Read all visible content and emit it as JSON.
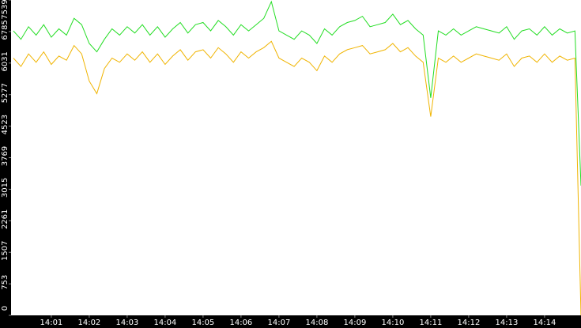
{
  "chart_data": {
    "type": "line",
    "x": [
      0,
      0.2,
      0.4,
      0.6,
      0.8,
      1,
      1.2,
      1.4,
      1.6,
      1.8,
      2,
      2.2,
      2.4,
      2.6,
      2.8,
      3,
      3.2,
      3.4,
      3.6,
      3.8,
      4,
      4.2,
      4.4,
      4.6,
      4.8,
      5,
      5.2,
      5.4,
      5.6,
      5.8,
      6,
      6.2,
      6.4,
      6.6,
      6.8,
      7,
      7.2,
      7.4,
      7.6,
      7.8,
      8,
      8.2,
      8.4,
      8.6,
      8.8,
      9,
      9.2,
      9.4,
      9.6,
      9.8,
      10,
      10.2,
      10.4,
      10.6,
      10.8,
      11,
      11.2,
      11.4,
      11.6,
      11.8,
      12,
      12.2,
      12.4,
      12.6,
      12.8,
      13,
      13.2,
      13.4,
      13.6,
      13.8,
      14,
      14.2,
      14.4,
      14.6,
      14.8,
      14.96
    ],
    "series": [
      {
        "color": "#22dd22",
        "values": [
          6800,
          6600,
          6900,
          6700,
          6950,
          6650,
          6850,
          6700,
          7100,
          6950,
          6500,
          6300,
          6600,
          6850,
          6700,
          6900,
          6750,
          6950,
          6700,
          6900,
          6650,
          6850,
          7000,
          6750,
          6950,
          7000,
          6800,
          7050,
          6900,
          6700,
          6950,
          6800,
          6950,
          7100,
          7500,
          6800,
          6700,
          6600,
          6800,
          6700,
          6500,
          6850,
          6700,
          6900,
          7000,
          7050,
          7150,
          6900,
          6950,
          7000,
          7200,
          6950,
          7050,
          6850,
          6700,
          5200,
          6800,
          6700,
          6850,
          6700,
          6800,
          6900,
          6850,
          6800,
          6750,
          6900,
          6600,
          6800,
          6850,
          6700,
          6900,
          6700,
          6850,
          6750,
          6800,
          3100
        ]
      },
      {
        "color": "#f0b400",
        "values": [
          6150,
          5950,
          6250,
          6050,
          6300,
          6000,
          6200,
          6100,
          6450,
          6250,
          5600,
          5300,
          5900,
          6150,
          6050,
          6250,
          6100,
          6300,
          6050,
          6250,
          6000,
          6200,
          6350,
          6100,
          6300,
          6350,
          6150,
          6400,
          6250,
          6050,
          6300,
          6150,
          6300,
          6400,
          6550,
          6150,
          6050,
          5950,
          6150,
          6050,
          5850,
          6200,
          6050,
          6250,
          6350,
          6400,
          6450,
          6250,
          6300,
          6350,
          6500,
          6300,
          6400,
          6200,
          6050,
          4750,
          6150,
          6050,
          6200,
          6050,
          6150,
          6250,
          6200,
          6150,
          6100,
          6250,
          5950,
          6150,
          6200,
          6050,
          6250,
          6050,
          6200,
          6100,
          6150,
          0
        ]
      }
    ],
    "xlim": [
      -0.06,
      14.96
    ],
    "xticks": [
      {
        "value": 1,
        "label": "14:01"
      },
      {
        "value": 2,
        "label": "14:02"
      },
      {
        "value": 3,
        "label": "14:03"
      },
      {
        "value": 4,
        "label": "14:04"
      },
      {
        "value": 5,
        "label": "14:05"
      },
      {
        "value": 6,
        "label": "14:06"
      },
      {
        "value": 7,
        "label": "14:07"
      },
      {
        "value": 8,
        "label": "14:08"
      },
      {
        "value": 9,
        "label": "14:09"
      },
      {
        "value": 10,
        "label": "14:10"
      },
      {
        "value": 11,
        "label": "14:11"
      },
      {
        "value": 12,
        "label": "14:12"
      },
      {
        "value": 13,
        "label": "14:13"
      },
      {
        "value": 14,
        "label": "14:14"
      }
    ],
    "ylim": [
      0,
      7539
    ],
    "yticks": [
      0,
      753,
      1507,
      2261,
      3015,
      3769,
      4523,
      5277,
      6031,
      6785,
      7539
    ]
  }
}
